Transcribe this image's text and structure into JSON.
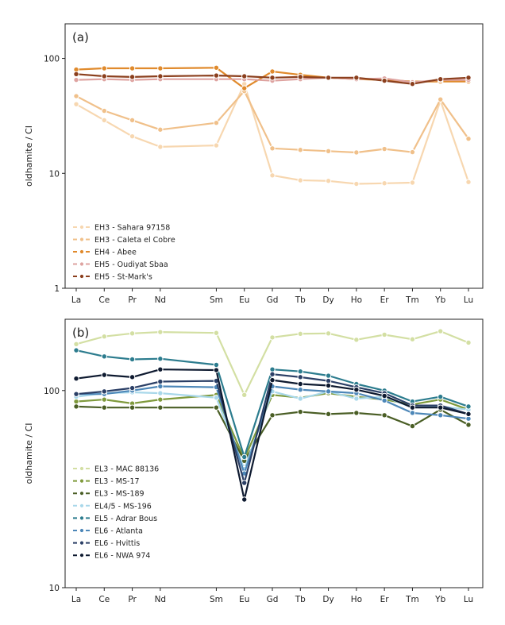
{
  "chart_data": [
    {
      "type": "line",
      "panel_label": "(a)",
      "ylabel": "oldhamite / CI",
      "yscale": "log",
      "ylim": [
        1,
        200
      ],
      "yticks": [
        1,
        10,
        100
      ],
      "ytick_labels": [
        "1",
        "10",
        "100"
      ],
      "categories": [
        "La",
        "Ce",
        "Pr",
        "Nd",
        "Sm",
        "Eu",
        "Gd",
        "Tb",
        "Dy",
        "Ho",
        "Er",
        "Tm",
        "Yb",
        "Lu"
      ],
      "category_positions": [
        57,
        58,
        59,
        60,
        62,
        63,
        64,
        65,
        66,
        67,
        68,
        69,
        70,
        71
      ],
      "legend_position": "lower-left",
      "series": [
        {
          "name": "EH3 - Sahara 97158",
          "color": "#f7d7b0",
          "values": [
            40,
            29,
            21,
            17,
            17.5,
            60,
            9.6,
            8.7,
            8.6,
            8.1,
            8.2,
            8.3,
            43,
            8.4
          ]
        },
        {
          "name": "EH3 - Caleta el Cobre",
          "color": "#f0c08a",
          "values": [
            47,
            35,
            29,
            24,
            27.5,
            52,
            16.5,
            16,
            15.6,
            15.2,
            16.3,
            15.3,
            44,
            20
          ]
        },
        {
          "name": "EH4 - Abee",
          "color": "#e08a2c",
          "values": [
            80,
            82,
            82,
            82,
            83,
            55,
            77,
            72,
            68,
            66,
            65,
            63,
            63,
            63
          ]
        },
        {
          "name": "EH5 - Oudiyat Sbaa",
          "color": "#dea3a0",
          "values": [
            65,
            66,
            65,
            66,
            66,
            66,
            64,
            66,
            68,
            66,
            67,
            62,
            65,
            65
          ]
        },
        {
          "name": "EH5 - St-Mark's",
          "color": "#8b3f1d",
          "values": [
            73,
            70,
            69,
            70,
            71,
            70,
            68,
            69,
            68,
            68,
            64,
            60,
            66,
            68
          ]
        }
      ]
    },
    {
      "type": "line",
      "panel_label": "(b)",
      "ylabel": "oldhamite / CI",
      "yscale": "log",
      "ylim": [
        10,
        230
      ],
      "yticks": [
        10,
        100
      ],
      "ytick_labels": [
        "10",
        "100"
      ],
      "categories": [
        "La",
        "Ce",
        "Pr",
        "Nd",
        "Sm",
        "Eu",
        "Gd",
        "Tb",
        "Dy",
        "Ho",
        "Er",
        "Tm",
        "Yb",
        "Lu"
      ],
      "category_positions": [
        57,
        58,
        59,
        60,
        62,
        63,
        64,
        65,
        66,
        67,
        68,
        69,
        70,
        71
      ],
      "legend_position": "lower-left",
      "series": [
        {
          "name": "EL3 - MAC 88136",
          "color": "#d3dfa3",
          "values": [
            172,
            188,
            195,
            198,
            196,
            95,
            186,
            194,
            195,
            181,
            192,
            182,
            200,
            175
          ]
        },
        {
          "name": "EL3 - MS-17",
          "color": "#7f9a3c",
          "values": [
            88,
            90,
            86,
            90,
            95,
            45,
            95,
            92,
            97,
            93,
            90,
            85,
            90,
            80
          ]
        },
        {
          "name": "EL3 - MS-189",
          "color": "#4a5e25",
          "values": [
            83,
            82,
            82,
            82,
            82,
            44,
            75,
            78,
            76,
            77,
            75,
            66,
            80,
            67
          ]
        },
        {
          "name": "EL4/5 - MS-196",
          "color": "#a9d8ea",
          "values": [
            93,
            97,
            98,
            97,
            92,
            40,
            99,
            91,
            99,
            91,
            93,
            82,
            83,
            80
          ]
        },
        {
          "name": "EL5 - Adrar Bous",
          "color": "#2c7c8e",
          "values": [
            160,
            149,
            144,
            145,
            135,
            46,
            128,
            125,
            119,
            108,
            100,
            88,
            93,
            83
          ]
        },
        {
          "name": "EL6 - Atlanta",
          "color": "#4d87b8",
          "values": [
            96,
            96,
            100,
            105,
            104,
            38,
            105,
            101,
            99,
            97,
            89,
            77,
            75,
            72
          ]
        },
        {
          "name": "EL6 - Hvittis",
          "color": "#2b3f66",
          "values": [
            96,
            99,
            103,
            111,
            112,
            34,
            121,
            117,
            112,
            104,
            97,
            84,
            84,
            76
          ]
        },
        {
          "name": "EL6 - NWA 974",
          "color": "#0e1a30",
          "values": [
            115,
            120,
            117,
            128,
            127,
            28,
            113,
            108,
            106,
            101,
            94,
            82,
            82,
            76
          ]
        }
      ]
    }
  ]
}
